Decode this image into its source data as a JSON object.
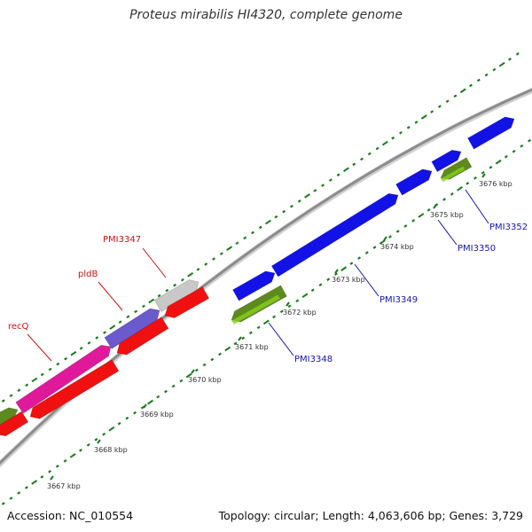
{
  "title": "Proteus mirabilis HI4320, complete genome",
  "footer": {
    "accession": "Accession: NC_010554",
    "summary": "Topology: circular; Length: 4,063,606 bp; Genes: 3,729"
  },
  "colors": {
    "backbone": "#8c8c8c",
    "dots": "#1a7a1a",
    "forward_blue": "#1212e6",
    "reverse_red": "#f01010",
    "magenta": "#e0199a",
    "purple": "#6a5acd",
    "grey": "#c8c8c8",
    "olive": "#5c8a1c",
    "lime": "#8ad11e",
    "label_blue": "#1515b0",
    "label_red": "#cc1111"
  },
  "ticks": [
    {
      "label": "3667 kbp"
    },
    {
      "label": "3668 kbp"
    },
    {
      "label": "3669 kbp"
    },
    {
      "label": "3670 kbp"
    },
    {
      "label": "3671 kbp"
    },
    {
      "label": "3672 kbp"
    },
    {
      "label": "3673 kbp"
    },
    {
      "label": "3674 kbp"
    },
    {
      "label": "3675 kbp"
    },
    {
      "label": "3676 kbp"
    }
  ],
  "gene_labels": [
    {
      "name": "PMI3347",
      "color": "label_red"
    },
    {
      "name": "pldB",
      "color": "label_red"
    },
    {
      "name": "recQ",
      "color": "label_red"
    },
    {
      "name": "PMI3348",
      "color": "label_blue"
    },
    {
      "name": "PMI3349",
      "color": "label_blue"
    },
    {
      "name": "PMI3350",
      "color": "label_blue"
    },
    {
      "name": "PMI3352",
      "color": "label_blue"
    }
  ]
}
